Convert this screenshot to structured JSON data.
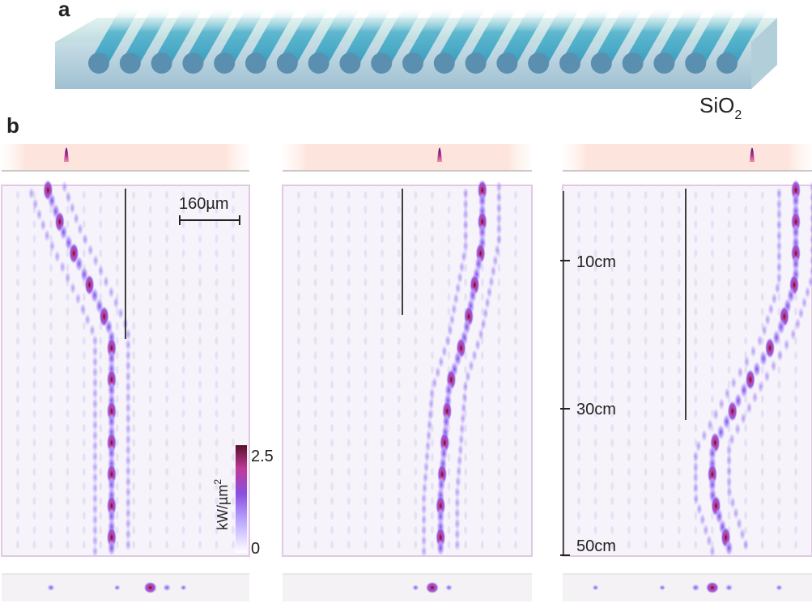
{
  "panel_a": {
    "label": "a",
    "substrate_label_main": "SiO",
    "substrate_label_sub": "2",
    "waveguide_count": 21
  },
  "panel_b": {
    "label": "b",
    "scale_bar_label": "160µm",
    "z_ticks": [
      "10cm",
      "30cm",
      "50cm"
    ],
    "colorbar": {
      "unit": "kW/µm",
      "unit_sup": "2",
      "max_label": "2.5",
      "min_label": "0",
      "colors": [
        "#ffffff",
        "#b9a6ff",
        "#8a4fe0",
        "#c03a98",
        "#5a0f2a"
      ]
    },
    "maps": [
      {
        "input_waveguide": 2,
        "output_peaks": [
          {
            "wg": 2,
            "p": 0.35
          },
          {
            "wg": 8,
            "p": 1.0
          },
          {
            "wg": 9,
            "p": 0.4
          },
          {
            "wg": 6,
            "p": 0.2
          },
          {
            "wg": 10,
            "p": 0.2
          }
        ]
      },
      {
        "input_waveguide": 11,
        "output_peaks": [
          {
            "wg": 8,
            "p": 1.0
          },
          {
            "wg": 9,
            "p": 0.3
          },
          {
            "wg": 7,
            "p": 0.25
          }
        ]
      },
      {
        "input_waveguide": 13,
        "output_peaks": [
          {
            "wg": 8,
            "p": 1.0
          },
          {
            "wg": 7,
            "p": 0.4
          },
          {
            "wg": 9,
            "p": 0.35
          },
          {
            "wg": 1,
            "p": 0.2
          },
          {
            "wg": 12,
            "p": 0.25
          },
          {
            "wg": 5,
            "p": 0.2
          }
        ]
      }
    ],
    "colors": {
      "frame": "#e3c8e3",
      "bg": "#f6f4fa",
      "rod": "#3fa6c6"
    }
  }
}
